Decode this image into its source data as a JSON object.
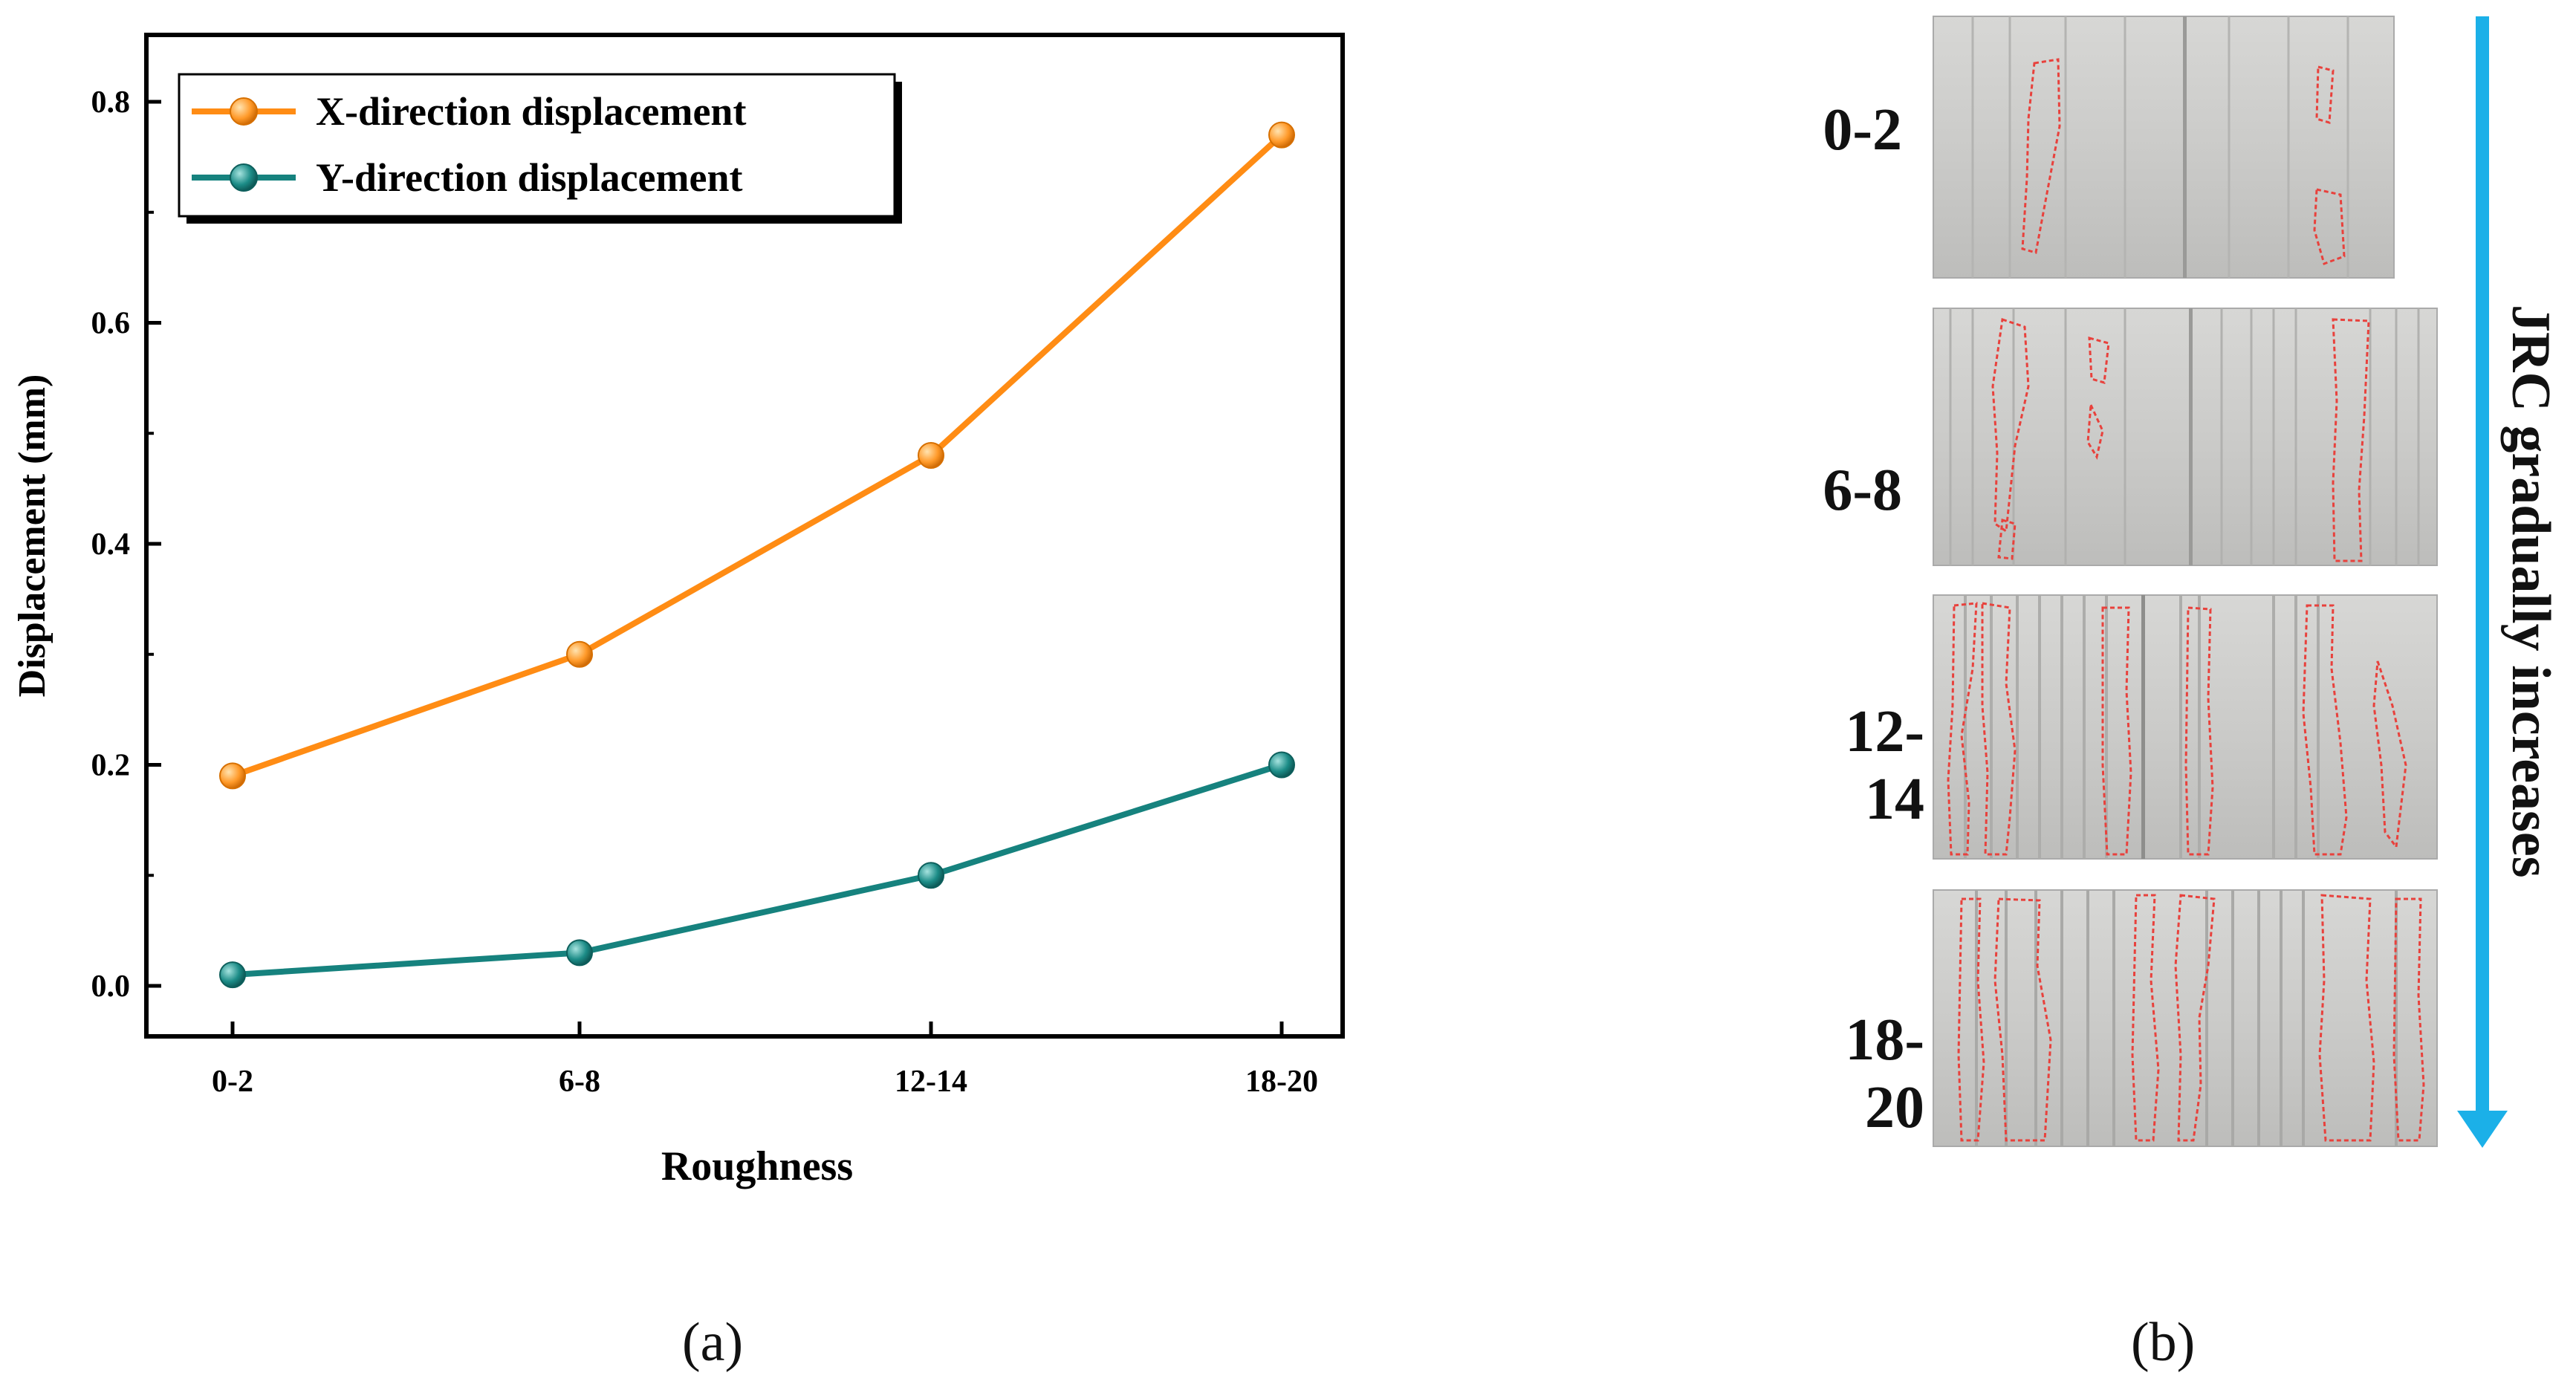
{
  "chart_data": {
    "type": "line",
    "categories": [
      "0-2",
      "6-8",
      "12-14",
      "18-20"
    ],
    "series": [
      {
        "name": "X-direction displacement",
        "values": [
          0.19,
          0.3,
          0.48,
          0.77
        ],
        "color": "#FF8C14"
      },
      {
        "name": "Y-direction displacement",
        "values": [
          0.01,
          0.03,
          0.1,
          0.2
        ],
        "color": "#16827E"
      }
    ],
    "xlabel": "Roughness",
    "ylabel": "Displacement (mm)",
    "ylim": [
      -0.05,
      0.85
    ],
    "yticks": [
      "0.0",
      "0.2",
      "0.4",
      "0.6",
      "0.8"
    ],
    "grid": false,
    "legend": "top-left"
  },
  "panels": {
    "a_label": "(a)",
    "b_label": "(b)"
  },
  "photos": {
    "row_labels": [
      "0-2",
      "6-8",
      "12-14",
      "18-20"
    ],
    "arrow_text": "JRC gradually increases",
    "arrow_color": "#1BB0E8",
    "outline_color": "#E8413C"
  }
}
